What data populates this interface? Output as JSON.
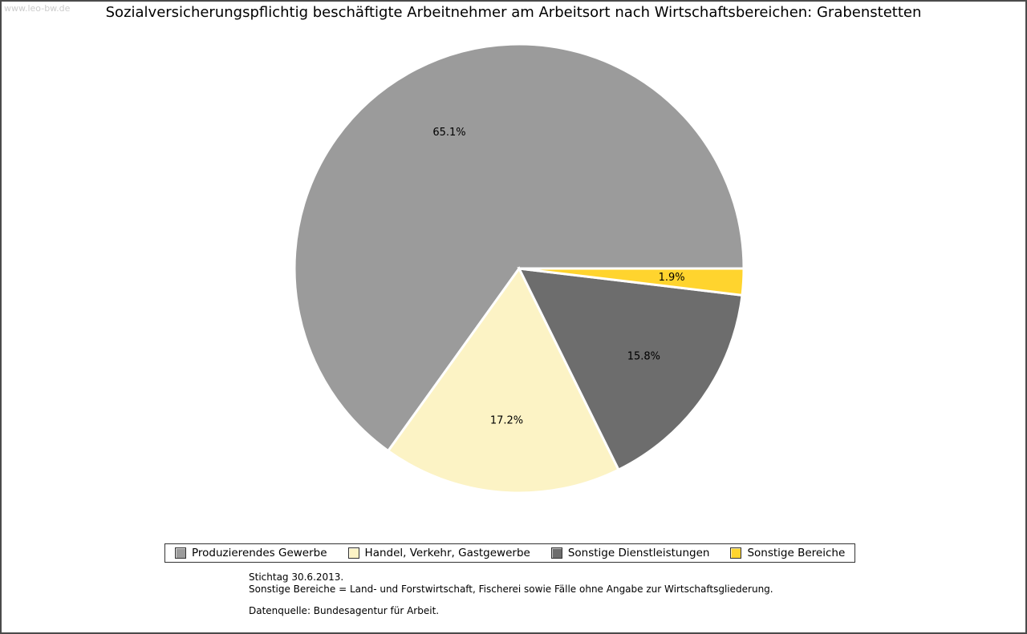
{
  "page": {
    "watermark": "www.leo-bw.de"
  },
  "chart_data": {
    "type": "pie",
    "title": "Sozialversicherungspflichtig beschäftigte Arbeitnehmer am Arbeitsort nach Wirtschaftsbereichen: Grabenstetten",
    "unit": "%",
    "start_angle_deg": 0,
    "direction": "counterclockwise",
    "legend_position": "bottom",
    "slices": [
      {
        "label": "Produzierendes Gewerbe",
        "value": 65.1,
        "display": "65.1%",
        "color": "#9B9B9B"
      },
      {
        "label": "Handel, Verkehr, Gastgewerbe",
        "value": 17.2,
        "display": "17.2%",
        "color": "#FCF3C5"
      },
      {
        "label": "Sonstige Dienstleistungen",
        "value": 15.8,
        "display": "15.8%",
        "color": "#6D6D6D"
      },
      {
        "label": "Sonstige Bereiche",
        "value": 1.9,
        "display": "1.9%",
        "color": "#FFD42E"
      }
    ]
  },
  "footnotes": [
    "Stichtag 30.6.2013.",
    "Sonstige Bereiche = Land- und Forstwirtschaft, Fischerei sowie Fälle ohne Angabe zur Wirtschaftsgliederung.",
    "Datenquelle: Bundesagentur für Arbeit."
  ]
}
